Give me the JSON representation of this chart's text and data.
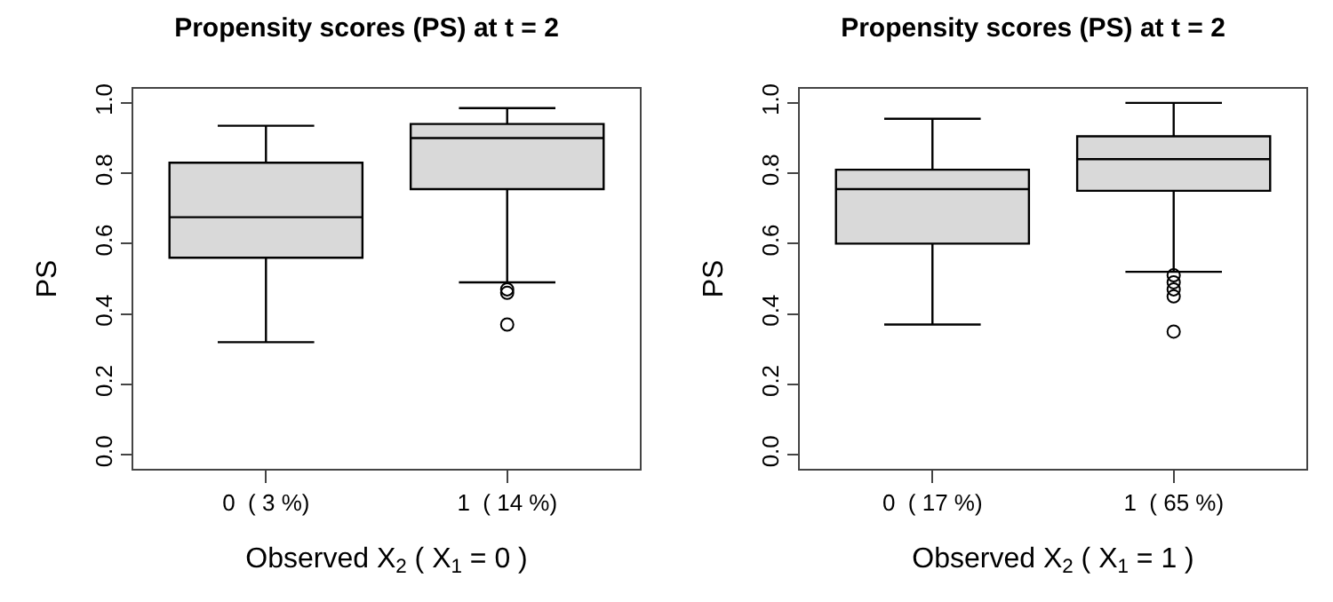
{
  "chart_data": [
    {
      "type": "box",
      "title": "Propensity scores (PS) at t = 2",
      "xlabel": "Observed X$_{2}$ ( X$_{1}$ = 0 )",
      "ylabel": "PS",
      "categories": [
        "0  ( 3 %)",
        "1  ( 14 %)"
      ],
      "boxes": [
        {
          "low": 0.32,
          "q1": 0.56,
          "median": 0.675,
          "q3": 0.83,
          "high": 0.935
        },
        {
          "low": 0.49,
          "q1": 0.755,
          "median": 0.9,
          "q3": 0.94,
          "high": 0.985,
          "outliers": [
            0.47,
            0.46,
            0.37
          ]
        }
      ],
      "color": "#d9d9d9",
      "ylim": [
        -0.04,
        1.04
      ],
      "yticks": [
        {
          "value": 0,
          "label": "0.0"
        },
        {
          "value": 0.2,
          "label": "0.2"
        },
        {
          "value": 0.4,
          "label": "0.4"
        },
        {
          "value": 0.6,
          "label": "0.6"
        },
        {
          "value": 0.8,
          "label": "0.8"
        },
        {
          "value": 1,
          "label": "1.0"
        }
      ],
      "grid": false
    },
    {
      "type": "box",
      "title": "Propensity scores (PS) at t = 2",
      "xlabel": "Observed X$_{2}$ ( X$_{1}$ = 1 )",
      "ylabel": "PS",
      "categories": [
        "0  ( 17 %)",
        "1  ( 65 %)"
      ],
      "boxes": [
        {
          "low": 0.37,
          "q1": 0.6,
          "median": 0.755,
          "q3": 0.81,
          "high": 0.955
        },
        {
          "low": 0.52,
          "q1": 0.75,
          "median": 0.84,
          "q3": 0.905,
          "high": 1.0,
          "outliers": [
            0.51,
            0.49,
            0.47,
            0.45,
            0.35
          ]
        }
      ],
      "color": "#d9d9d9",
      "ylim": [
        -0.04,
        1.04
      ],
      "yticks": [
        {
          "value": 0,
          "label": "0.0"
        },
        {
          "value": 0.2,
          "label": "0.2"
        },
        {
          "value": 0.4,
          "label": "0.4"
        },
        {
          "value": 0.6,
          "label": "0.6"
        },
        {
          "value": 0.8,
          "label": "0.8"
        },
        {
          "value": 1,
          "label": "1.0"
        }
      ],
      "grid": false
    }
  ]
}
